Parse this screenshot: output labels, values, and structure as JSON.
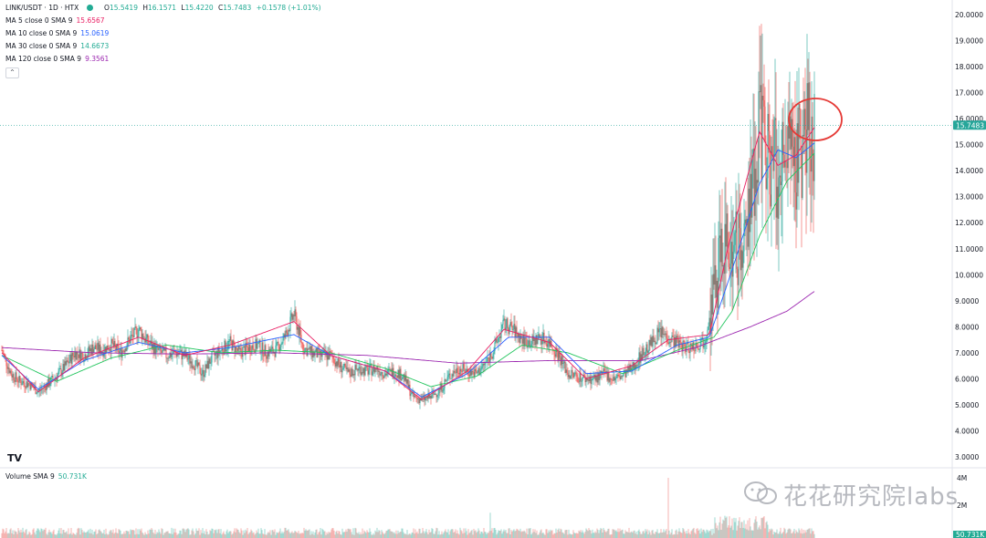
{
  "header": {
    "symbol": "LINK/USDT · 1D · HTX",
    "open_label": "O",
    "open": "15.5419",
    "high_label": "H",
    "high": "16.1571",
    "low_label": "L",
    "low": "15.4220",
    "close_label": "C",
    "close": "15.7483",
    "change": "+0.1578 (+1.01%)"
  },
  "indicators": [
    {
      "label": "MA 5 close 0 SMA 9",
      "value": "15.6567",
      "color": "#e91e63"
    },
    {
      "label": "MA 10 close 0 SMA 9",
      "value": "15.0619",
      "color": "#2962ff"
    },
    {
      "label": "MA 30 close 0 SMA 9",
      "value": "14.6673",
      "color": "#22c55e"
    },
    {
      "label": "MA 120 close 0 SMA 9",
      "value": "9.3561",
      "color": "#9c27b0"
    }
  ],
  "collapse_icon": "chevron-up-icon",
  "volume": {
    "label": "Volume SMA 9",
    "value": "50.731K",
    "axis": [
      "4M",
      "2M"
    ],
    "last_badge": "50.731K"
  },
  "price_badge": "15.7483",
  "watermark": "花花研究院labs",
  "tv_logo": "TV",
  "colors": {
    "up": "#26a69a",
    "down": "#ef5350",
    "grid": "#f0f3fa",
    "price_line": "#26a69a"
  },
  "chart_data": {
    "type": "candlestick",
    "title": "LINK/USDT · 1D · HTX",
    "yticks": [
      "20.0000",
      "19.0000",
      "18.0000",
      "17.0000",
      "16.0000",
      "15.0000",
      "14.0000",
      "13.0000",
      "12.0000",
      "11.0000",
      "10.0000",
      "9.0000",
      "8.0000",
      "7.0000",
      "6.0000",
      "5.0000",
      "4.0000",
      "3.0000"
    ],
    "ylim": [
      2.6,
      20.5
    ],
    "last_price": 15.7483,
    "anchors": [
      [
        0,
        7.1
      ],
      [
        10,
        6.2
      ],
      [
        20,
        5.9
      ],
      [
        30,
        5.8
      ],
      [
        40,
        5.5
      ],
      [
        50,
        5.8
      ],
      [
        60,
        6.1
      ],
      [
        70,
        6.5
      ],
      [
        80,
        7.0
      ],
      [
        90,
        6.9
      ],
      [
        100,
        7.2
      ],
      [
        110,
        7.1
      ],
      [
        120,
        7.3
      ],
      [
        130,
        7.0
      ],
      [
        140,
        7.5
      ],
      [
        150,
        7.9
      ],
      [
        160,
        7.4
      ],
      [
        170,
        7.1
      ],
      [
        180,
        6.9
      ],
      [
        190,
        7.0
      ],
      [
        200,
        6.9
      ],
      [
        210,
        6.6
      ],
      [
        220,
        6.2
      ],
      [
        230,
        6.8
      ],
      [
        240,
        7.1
      ],
      [
        250,
        7.4
      ],
      [
        260,
        7.0
      ],
      [
        270,
        7.2
      ],
      [
        280,
        7.3
      ],
      [
        290,
        7.0
      ],
      [
        300,
        7.1
      ],
      [
        310,
        7.6
      ],
      [
        320,
        8.5
      ],
      [
        330,
        7.2
      ],
      [
        340,
        7.0
      ],
      [
        350,
        6.9
      ],
      [
        360,
        6.9
      ],
      [
        370,
        6.5
      ],
      [
        380,
        6.2
      ],
      [
        390,
        6.4
      ],
      [
        400,
        6.3
      ],
      [
        410,
        6.4
      ],
      [
        420,
        6.2
      ],
      [
        430,
        6.3
      ],
      [
        440,
        6.1
      ],
      [
        450,
        5.3
      ],
      [
        460,
        5.2
      ],
      [
        470,
        5.3
      ],
      [
        480,
        5.6
      ],
      [
        490,
        6.1
      ],
      [
        500,
        6.4
      ],
      [
        510,
        6.3
      ],
      [
        520,
        6.2
      ],
      [
        530,
        6.6
      ],
      [
        540,
        7.2
      ],
      [
        550,
        8.1
      ],
      [
        560,
        7.9
      ],
      [
        570,
        7.5
      ],
      [
        580,
        7.4
      ],
      [
        590,
        7.6
      ],
      [
        600,
        7.4
      ],
      [
        610,
        6.9
      ],
      [
        620,
        6.2
      ],
      [
        630,
        6.1
      ],
      [
        640,
        6.0
      ],
      [
        650,
        6.0
      ],
      [
        660,
        6.2
      ],
      [
        670,
        6.0
      ],
      [
        680,
        6.1
      ],
      [
        690,
        6.4
      ],
      [
        700,
        6.9
      ],
      [
        710,
        7.3
      ],
      [
        720,
        7.8
      ],
      [
        730,
        7.6
      ],
      [
        740,
        7.4
      ],
      [
        750,
        7.2
      ],
      [
        760,
        7.3
      ],
      [
        770,
        7.5
      ],
      [
        780,
        9.5
      ],
      [
        790,
        11.0
      ],
      [
        800,
        11.2
      ],
      [
        810,
        11.0
      ],
      [
        820,
        12.5
      ],
      [
        830,
        16.0
      ],
      [
        840,
        14.5
      ],
      [
        850,
        14.0
      ],
      [
        860,
        14.2
      ],
      [
        870,
        14.4
      ],
      [
        880,
        15.2
      ],
      [
        890,
        15.75
      ]
    ],
    "ma_series": [
      {
        "name": "MA 120",
        "color": "#9c27b0",
        "points": [
          [
            0,
            7.2
          ],
          [
            100,
            7.0
          ],
          [
            200,
            6.95
          ],
          [
            300,
            7.0
          ],
          [
            400,
            6.9
          ],
          [
            500,
            6.6
          ],
          [
            600,
            6.7
          ],
          [
            700,
            6.7
          ],
          [
            760,
            7.2
          ],
          [
            820,
            8.0
          ],
          [
            860,
            8.6
          ],
          [
            890,
            9.36
          ]
        ]
      },
      {
        "name": "MA 30",
        "color": "#22c55e",
        "points": [
          [
            0,
            6.9
          ],
          [
            60,
            5.9
          ],
          [
            120,
            6.8
          ],
          [
            180,
            7.3
          ],
          [
            240,
            7.0
          ],
          [
            300,
            7.1
          ],
          [
            360,
            7.0
          ],
          [
            420,
            6.4
          ],
          [
            470,
            5.7
          ],
          [
            520,
            6.1
          ],
          [
            570,
            7.3
          ],
          [
            620,
            7.0
          ],
          [
            680,
            6.2
          ],
          [
            740,
            7.1
          ],
          [
            780,
            7.6
          ],
          [
            800,
            8.6
          ],
          [
            830,
            11.5
          ],
          [
            860,
            13.6
          ],
          [
            890,
            14.67
          ]
        ]
      },
      {
        "name": "MA 10",
        "color": "#2962ff",
        "points": [
          [
            0,
            6.9
          ],
          [
            40,
            5.6
          ],
          [
            90,
            6.7
          ],
          [
            150,
            7.4
          ],
          [
            200,
            7.0
          ],
          [
            250,
            7.2
          ],
          [
            320,
            7.7
          ],
          [
            360,
            6.9
          ],
          [
            420,
            6.3
          ],
          [
            460,
            5.3
          ],
          [
            510,
            6.2
          ],
          [
            555,
            7.6
          ],
          [
            600,
            7.6
          ],
          [
            640,
            6.2
          ],
          [
            690,
            6.3
          ],
          [
            740,
            7.3
          ],
          [
            775,
            7.6
          ],
          [
            800,
            10.2
          ],
          [
            830,
            13.5
          ],
          [
            850,
            14.8
          ],
          [
            870,
            14.5
          ],
          [
            890,
            15.06
          ]
        ]
      },
      {
        "name": "MA 5",
        "color": "#e91e63",
        "points": [
          [
            0,
            7.0
          ],
          [
            40,
            5.5
          ],
          [
            90,
            6.8
          ],
          [
            150,
            7.6
          ],
          [
            200,
            6.9
          ],
          [
            250,
            7.3
          ],
          [
            320,
            8.2
          ],
          [
            360,
            6.9
          ],
          [
            420,
            6.3
          ],
          [
            460,
            5.2
          ],
          [
            510,
            6.3
          ],
          [
            550,
            7.9
          ],
          [
            600,
            7.4
          ],
          [
            640,
            6.0
          ],
          [
            690,
            6.5
          ],
          [
            730,
            7.5
          ],
          [
            775,
            7.7
          ],
          [
            795,
            11.0
          ],
          [
            830,
            15.5
          ],
          [
            850,
            14.2
          ],
          [
            870,
            14.6
          ],
          [
            890,
            15.66
          ]
        ]
      }
    ]
  }
}
